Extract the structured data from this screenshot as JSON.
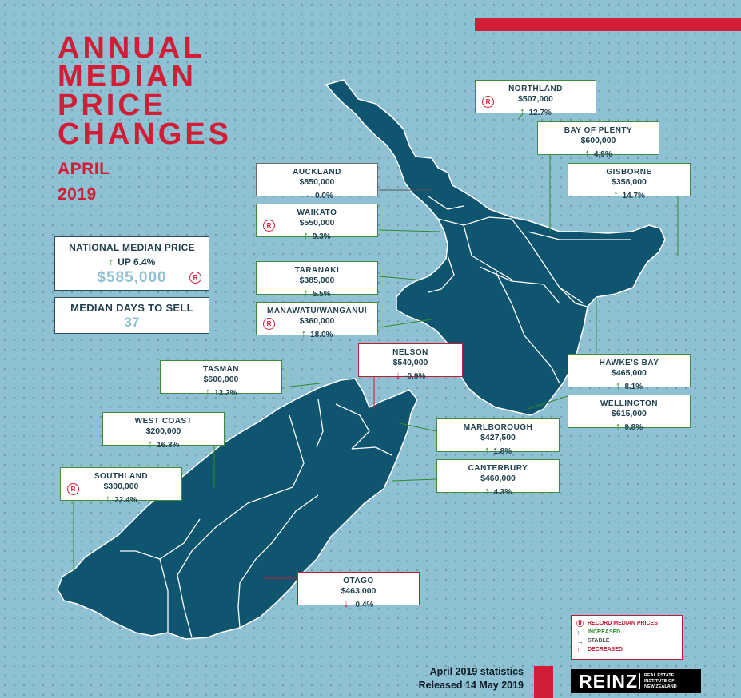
{
  "title_lines": [
    "ANNUAL",
    "MEDIAN",
    "PRICE",
    "CHANGES"
  ],
  "month": "APRIL",
  "year": "2019",
  "national": {
    "label": "NATIONAL MEDIAN PRICE",
    "change": "UP 6.4%",
    "price": "$585,000",
    "record": true
  },
  "days_to_sell": {
    "label": "MEDIAN DAYS TO SELL",
    "value": "37"
  },
  "regions": [
    {
      "name": "NORTHLAND",
      "price": "$507,000",
      "change": "12.7%",
      "trend": "increased",
      "record": true
    },
    {
      "name": "BAY OF PLENTY",
      "price": "$600,000",
      "change": "4.9%",
      "trend": "increased",
      "record": false
    },
    {
      "name": "GISBORNE",
      "price": "$358,000",
      "change": "14.7%",
      "trend": "increased",
      "record": false
    },
    {
      "name": "AUCKLAND",
      "price": "$850,000",
      "change": "0.0%",
      "trend": "stable",
      "record": false
    },
    {
      "name": "WAIKATO",
      "price": "$550,000",
      "change": "9.3%",
      "trend": "increased",
      "record": true
    },
    {
      "name": "TARANAKI",
      "price": "$385,000",
      "change": "5.5%",
      "trend": "increased",
      "record": false
    },
    {
      "name": "MANAWATU/WANGANUI",
      "price": "$360,000",
      "change": "18.0%",
      "trend": "increased",
      "record": true
    },
    {
      "name": "NELSON",
      "price": "$540,000",
      "change": "-0.9%",
      "trend": "decreased",
      "record": false
    },
    {
      "name": "TASMAN",
      "price": "$600,000",
      "change": "13.2%",
      "trend": "increased",
      "record": false
    },
    {
      "name": "HAWKE'S BAY",
      "price": "$465,000",
      "change": "8.1%",
      "trend": "increased",
      "record": false
    },
    {
      "name": "WELLINGTON",
      "price": "$615,000",
      "change": "9.8%",
      "trend": "increased",
      "record": false
    },
    {
      "name": "WEST COAST",
      "price": "$200,000",
      "change": "16.3%",
      "trend": "increased",
      "record": false
    },
    {
      "name": "MARLBOROUGH",
      "price": "$427,500",
      "change": "1.8%",
      "trend": "increased",
      "record": false
    },
    {
      "name": "SOUTHLAND",
      "price": "$300,000",
      "change": "22.4%",
      "trend": "increased",
      "record": true
    },
    {
      "name": "CANTERBURY",
      "price": "$460,000",
      "change": "4.3%",
      "trend": "increased",
      "record": false
    },
    {
      "name": "OTAGO",
      "price": "$463,000",
      "change": "-0.4%",
      "trend": "decreased",
      "record": false
    }
  ],
  "legend": {
    "record": "RECORD MEDIAN PRICES",
    "increased": "INCREASED",
    "stable": "STABLE",
    "decreased": "DECREASED"
  },
  "footer": {
    "line1": "April 2019 statistics",
    "line2": "Released 14 May 2019"
  },
  "logo": {
    "text": "REINZ",
    "tagline": [
      "REAL ESTATE",
      "INSTITUTE OF",
      "NEW ZEALAND"
    ]
  },
  "colors": {
    "sea": "#8ec1d4",
    "land": "#0f5570",
    "accent": "#d11d35",
    "increase": "#2f8a2e",
    "decrease": "#c01b35",
    "stable": "#555555"
  }
}
